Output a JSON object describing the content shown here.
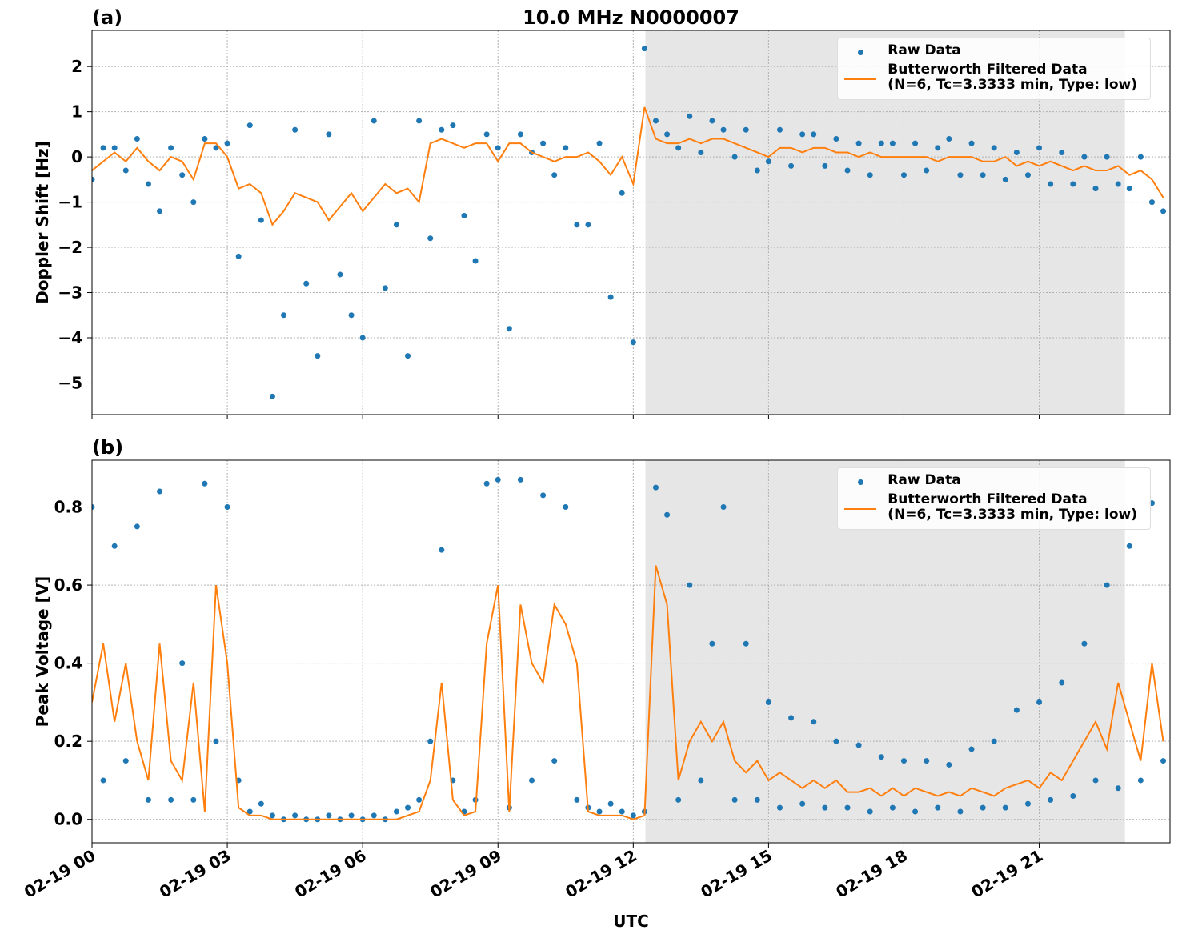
{
  "chart_data": [
    {
      "type": "line",
      "panel_label": "(a)",
      "title": "10.0 MHz N0000007",
      "ylabel": "Doppler Shift [Hz]",
      "x": [
        0,
        0.25,
        0.5,
        0.75,
        1,
        1.25,
        1.5,
        1.75,
        2,
        2.25,
        2.5,
        2.75,
        3,
        3.25,
        3.5,
        3.75,
        4,
        4.25,
        4.5,
        4.75,
        5,
        5.25,
        5.5,
        5.75,
        6,
        6.25,
        6.5,
        6.75,
        7,
        7.25,
        7.5,
        7.75,
        8,
        8.25,
        8.5,
        8.75,
        9,
        9.25,
        9.5,
        9.75,
        10,
        10.25,
        10.5,
        10.75,
        11,
        11.25,
        11.5,
        11.75,
        12,
        12.25,
        12.5,
        12.75,
        13,
        13.25,
        13.5,
        13.75,
        14,
        14.25,
        14.5,
        14.75,
        15,
        15.25,
        15.5,
        15.75,
        16,
        16.25,
        16.5,
        16.75,
        17,
        17.25,
        17.5,
        17.75,
        18,
        18.25,
        18.5,
        18.75,
        19,
        19.25,
        19.5,
        19.75,
        20,
        20.25,
        20.5,
        20.75,
        21,
        21.25,
        21.5,
        21.75,
        22,
        22.25,
        22.5,
        22.75,
        23,
        23.25,
        23.5,
        23.75
      ],
      "series": [
        {
          "name": "Raw Data",
          "color": "#1f77b4",
          "marker": "dot",
          "values": [
            -0.5,
            0.2,
            0.2,
            -0.3,
            0.4,
            -0.6,
            -1.2,
            0.2,
            -0.4,
            -1.0,
            0.4,
            0.2,
            0.3,
            -2.2,
            0.7,
            -1.4,
            -5.3,
            -3.5,
            0.6,
            -2.8,
            -4.4,
            0.5,
            -2.6,
            -3.5,
            -4.0,
            0.8,
            -2.9,
            -1.5,
            -4.4,
            0.8,
            -1.8,
            0.6,
            0.7,
            -1.3,
            -2.3,
            0.5,
            0.2,
            -3.8,
            0.5,
            0.1,
            0.3,
            -0.4,
            0.2,
            -1.5,
            -1.5,
            0.3,
            -3.1,
            -0.8,
            -4.1,
            2.4,
            0.8,
            0.5,
            0.2,
            0.9,
            0.1,
            0.8,
            0.6,
            0.0,
            0.6,
            -0.3,
            -0.1,
            0.6,
            -0.2,
            0.5,
            0.5,
            -0.2,
            0.4,
            -0.3,
            0.3,
            -0.4,
            0.3,
            0.3,
            -0.4,
            0.3,
            -0.3,
            0.2,
            0.4,
            -0.4,
            0.3,
            -0.4,
            0.2,
            -0.5,
            0.1,
            -0.4,
            0.2,
            -0.6,
            0.1,
            -0.6,
            0.0,
            -0.7,
            0.0,
            -0.6,
            -0.7,
            0.0,
            -1.0,
            -1.2
          ]
        },
        {
          "name": "Butterworth Filtered Data\n(N=6, Tc=3.3333 min, Type: low)",
          "color": "#ff7f0e",
          "marker": "line",
          "values": [
            -0.3,
            -0.1,
            0.1,
            -0.1,
            0.2,
            -0.1,
            -0.3,
            0.0,
            -0.1,
            -0.5,
            0.3,
            0.3,
            0.0,
            -0.7,
            -0.6,
            -0.8,
            -1.5,
            -1.2,
            -0.8,
            -0.9,
            -1.0,
            -1.4,
            -1.1,
            -0.8,
            -1.2,
            -0.9,
            -0.6,
            -0.8,
            -0.7,
            -1.0,
            0.3,
            0.4,
            0.3,
            0.2,
            0.3,
            0.3,
            -0.1,
            0.3,
            0.3,
            0.1,
            0.0,
            -0.1,
            0.0,
            0.0,
            0.1,
            -0.1,
            -0.4,
            0.0,
            -0.6,
            1.1,
            0.4,
            0.3,
            0.3,
            0.4,
            0.3,
            0.4,
            0.4,
            0.3,
            0.2,
            0.1,
            0.0,
            0.2,
            0.2,
            0.1,
            0.2,
            0.2,
            0.1,
            0.1,
            0.0,
            0.1,
            0.0,
            0.0,
            0.0,
            0.0,
            0.0,
            -0.1,
            0.0,
            0.0,
            0.0,
            -0.1,
            -0.1,
            0.0,
            -0.2,
            -0.1,
            -0.2,
            -0.1,
            -0.2,
            -0.3,
            -0.2,
            -0.3,
            -0.3,
            -0.2,
            -0.4,
            -0.3,
            -0.5,
            -0.9
          ]
        }
      ],
      "shaded_span": [
        12.27,
        22.9
      ],
      "xlim": [
        0,
        23.9
      ],
      "xticks": [
        0,
        3,
        6,
        9,
        12,
        15,
        18,
        21
      ],
      "ylim": [
        -5.7,
        2.8
      ],
      "yticks": [
        {
          "value": -5,
          "label": "−5"
        },
        {
          "value": -4,
          "label": "−4"
        },
        {
          "value": -3,
          "label": "−3"
        },
        {
          "value": -2,
          "label": "−2"
        },
        {
          "value": -1,
          "label": "−1"
        },
        0,
        1,
        2
      ],
      "grid": true,
      "legend": "upper right"
    },
    {
      "type": "line",
      "panel_label": "(b)",
      "ylabel": "Peak Voltage [V]",
      "xlabel": "UTC",
      "x": [
        0,
        0.25,
        0.5,
        0.75,
        1,
        1.25,
        1.5,
        1.75,
        2,
        2.25,
        2.5,
        2.75,
        3,
        3.25,
        3.5,
        3.75,
        4,
        4.25,
        4.5,
        4.75,
        5,
        5.25,
        5.5,
        5.75,
        6,
        6.25,
        6.5,
        6.75,
        7,
        7.25,
        7.5,
        7.75,
        8,
        8.25,
        8.5,
        8.75,
        9,
        9.25,
        9.5,
        9.75,
        10,
        10.25,
        10.5,
        10.75,
        11,
        11.25,
        11.5,
        11.75,
        12,
        12.25,
        12.5,
        12.75,
        13,
        13.25,
        13.5,
        13.75,
        14,
        14.25,
        14.5,
        14.75,
        15,
        15.25,
        15.5,
        15.75,
        16,
        16.25,
        16.5,
        16.75,
        17,
        17.25,
        17.5,
        17.75,
        18,
        18.25,
        18.5,
        18.75,
        19,
        19.25,
        19.5,
        19.75,
        20,
        20.25,
        20.5,
        20.75,
        21,
        21.25,
        21.5,
        21.75,
        22,
        22.25,
        22.5,
        22.75,
        23,
        23.25,
        23.5,
        23.75
      ],
      "series": [
        {
          "name": "Raw Data",
          "color": "#1f77b4",
          "marker": "dot",
          "values": [
            0.8,
            0.1,
            0.7,
            0.15,
            0.75,
            0.05,
            0.84,
            0.05,
            0.4,
            0.05,
            0.86,
            0.2,
            0.8,
            0.1,
            0.02,
            0.04,
            0.01,
            0,
            0.01,
            0,
            0,
            0.01,
            0,
            0.01,
            0,
            0.01,
            0,
            0.02,
            0.03,
            0.05,
            0.2,
            0.69,
            0.1,
            0.02,
            0.05,
            0.86,
            0.87,
            0.03,
            0.87,
            0.1,
            0.83,
            0.15,
            0.8,
            0.05,
            0.03,
            0.02,
            0.04,
            0.02,
            0.01,
            0.02,
            0.85,
            0.78,
            0.05,
            0.6,
            0.1,
            0.45,
            0.8,
            0.05,
            0.45,
            0.05,
            0.3,
            0.03,
            0.26,
            0.04,
            0.25,
            0.03,
            0.2,
            0.03,
            0.19,
            0.02,
            0.16,
            0.03,
            0.15,
            0.02,
            0.15,
            0.03,
            0.14,
            0.02,
            0.18,
            0.03,
            0.2,
            0.03,
            0.28,
            0.04,
            0.3,
            0.05,
            0.35,
            0.06,
            0.45,
            0.1,
            0.6,
            0.08,
            0.7,
            0.1,
            0.81,
            0.15
          ]
        },
        {
          "name": "Butterworth Filtered Data\n(N=6, Tc=3.3333 min, Type: low)",
          "color": "#ff7f0e",
          "marker": "line",
          "values": [
            0.3,
            0.45,
            0.25,
            0.4,
            0.2,
            0.1,
            0.45,
            0.15,
            0.1,
            0.35,
            0.02,
            0.6,
            0.4,
            0.03,
            0.01,
            0.01,
            0,
            0,
            0,
            0,
            0,
            0,
            0,
            0,
            0,
            0,
            0,
            0,
            0.01,
            0.02,
            0.1,
            0.35,
            0.05,
            0.01,
            0.02,
            0.45,
            0.6,
            0.02,
            0.55,
            0.4,
            0.35,
            0.55,
            0.5,
            0.4,
            0.02,
            0.01,
            0.01,
            0.01,
            0,
            0.01,
            0.65,
            0.55,
            0.1,
            0.2,
            0.25,
            0.2,
            0.25,
            0.15,
            0.12,
            0.15,
            0.1,
            0.12,
            0.1,
            0.08,
            0.1,
            0.08,
            0.1,
            0.07,
            0.07,
            0.08,
            0.06,
            0.08,
            0.06,
            0.08,
            0.07,
            0.06,
            0.07,
            0.06,
            0.08,
            0.07,
            0.06,
            0.08,
            0.09,
            0.1,
            0.08,
            0.12,
            0.1,
            0.15,
            0.2,
            0.25,
            0.18,
            0.35,
            0.25,
            0.15,
            0.4,
            0.2
          ]
        }
      ],
      "shaded_span": [
        12.27,
        22.9
      ],
      "xlim": [
        0,
        23.9
      ],
      "xticks": [
        {
          "value": 0,
          "label": "02-19 00"
        },
        {
          "value": 3,
          "label": "02-19 03"
        },
        {
          "value": 6,
          "label": "02-19 06"
        },
        {
          "value": 9,
          "label": "02-19 09"
        },
        {
          "value": 12,
          "label": "02-19 12"
        },
        {
          "value": 15,
          "label": "02-19 15"
        },
        {
          "value": 18,
          "label": "02-19 18"
        },
        {
          "value": 21,
          "label": "02-19 21"
        }
      ],
      "ylim": [
        -0.06,
        0.92
      ],
      "yticks": [
        {
          "value": 0,
          "label": "0.0"
        },
        0.2,
        0.4,
        0.6,
        0.8
      ],
      "grid": true,
      "legend": "upper right"
    }
  ]
}
